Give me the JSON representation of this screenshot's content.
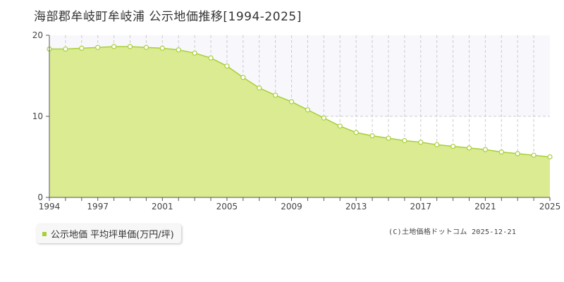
{
  "title": "海部郡牟岐町牟岐浦 公示地価推移[1994-2025]",
  "legend": {
    "label": "公示地価 平均坪単価(万円/坪)"
  },
  "copyright": "(C)土地価格ドットコム 2025-12-21",
  "colors": {
    "fill": "#dbeb92",
    "line": "#a8cf38",
    "grid": "#cccccc",
    "band": "#f8f7fb"
  },
  "chart_data": {
    "type": "area",
    "title": "",
    "xlabel": "",
    "ylabel": "",
    "xlim": [
      1994,
      2025
    ],
    "ylim": [
      0,
      20
    ],
    "yticks": [
      0,
      10,
      20
    ],
    "xtick_labels": [
      "1994",
      "1997",
      "2001",
      "2005",
      "2009",
      "2013",
      "2017",
      "2021",
      "2025"
    ],
    "grid": true,
    "legend_position": "bottom-left",
    "series": [
      {
        "name": "公示地価 平均坪単価(万円/坪)",
        "x": [
          1994,
          1995,
          1996,
          1997,
          1998,
          1999,
          2000,
          2001,
          2002,
          2003,
          2004,
          2005,
          2006,
          2007,
          2008,
          2009,
          2010,
          2011,
          2012,
          2013,
          2014,
          2015,
          2016,
          2017,
          2018,
          2019,
          2020,
          2021,
          2022,
          2023,
          2024,
          2025
        ],
        "y": [
          18.3,
          18.3,
          18.4,
          18.5,
          18.6,
          18.6,
          18.5,
          18.4,
          18.2,
          17.8,
          17.2,
          16.2,
          14.8,
          13.5,
          12.6,
          11.8,
          10.8,
          9.8,
          8.8,
          8.0,
          7.6,
          7.3,
          7.0,
          6.8,
          6.5,
          6.3,
          6.1,
          5.9,
          5.6,
          5.4,
          5.2,
          5.0
        ]
      }
    ]
  }
}
